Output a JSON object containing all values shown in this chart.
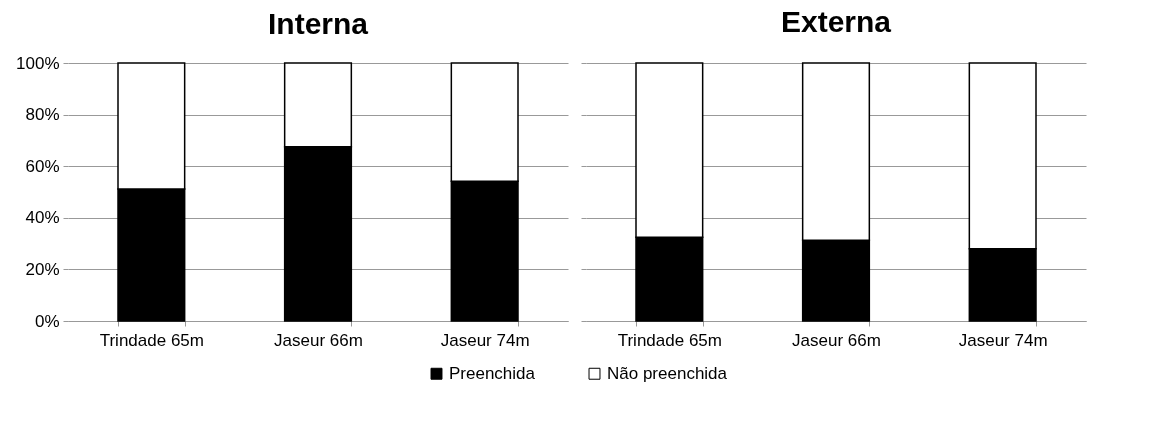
{
  "chart_data": [
    {
      "type": "bar",
      "title": "Interna",
      "stacked": true,
      "categories": [
        "Trindade 65m",
        "Jaseur 66m",
        "Jaseur 74m"
      ],
      "series": [
        {
          "name": "Preenchida",
          "color": "#000000",
          "values": [
            51.2,
            67.5,
            54.2
          ]
        },
        {
          "name": "Não preenchida",
          "color": "#ffffff",
          "values": [
            48.8,
            32.5,
            45.8
          ]
        }
      ],
      "ylim": [
        0,
        100
      ],
      "yticks": [
        {
          "value": 0,
          "label": "0%"
        },
        {
          "value": 20,
          "label": "20%"
        },
        {
          "value": 40,
          "label": "40%"
        },
        {
          "value": 60,
          "label": "60%"
        },
        {
          "value": 80,
          "label": "80%"
        },
        {
          "value": 100,
          "label": "100%"
        }
      ],
      "grid": "y",
      "legend": "bottom"
    },
    {
      "type": "bar",
      "title": "Externa",
      "stacked": true,
      "categories": [
        "Trindade 65m",
        "Jaseur 66m",
        "Jaseur 74m"
      ],
      "series": [
        {
          "name": "Preenchida",
          "color": "#000000",
          "values": [
            32.5,
            31.3,
            28
          ]
        },
        {
          "name": "Não preenchida",
          "color": "#ffffff",
          "values": [
            67.5,
            68.7,
            72
          ]
        }
      ],
      "ylim": [
        0,
        100
      ],
      "yticks": [
        {
          "value": 0,
          "label": null
        },
        {
          "value": 20,
          "label": null
        },
        {
          "value": 40,
          "label": null
        },
        {
          "value": 60,
          "label": null
        },
        {
          "value": 80,
          "label": null
        },
        {
          "value": 100,
          "label": null
        }
      ],
      "grid": "y",
      "legend": "bottom",
      "tick_labels": "x"
    }
  ]
}
